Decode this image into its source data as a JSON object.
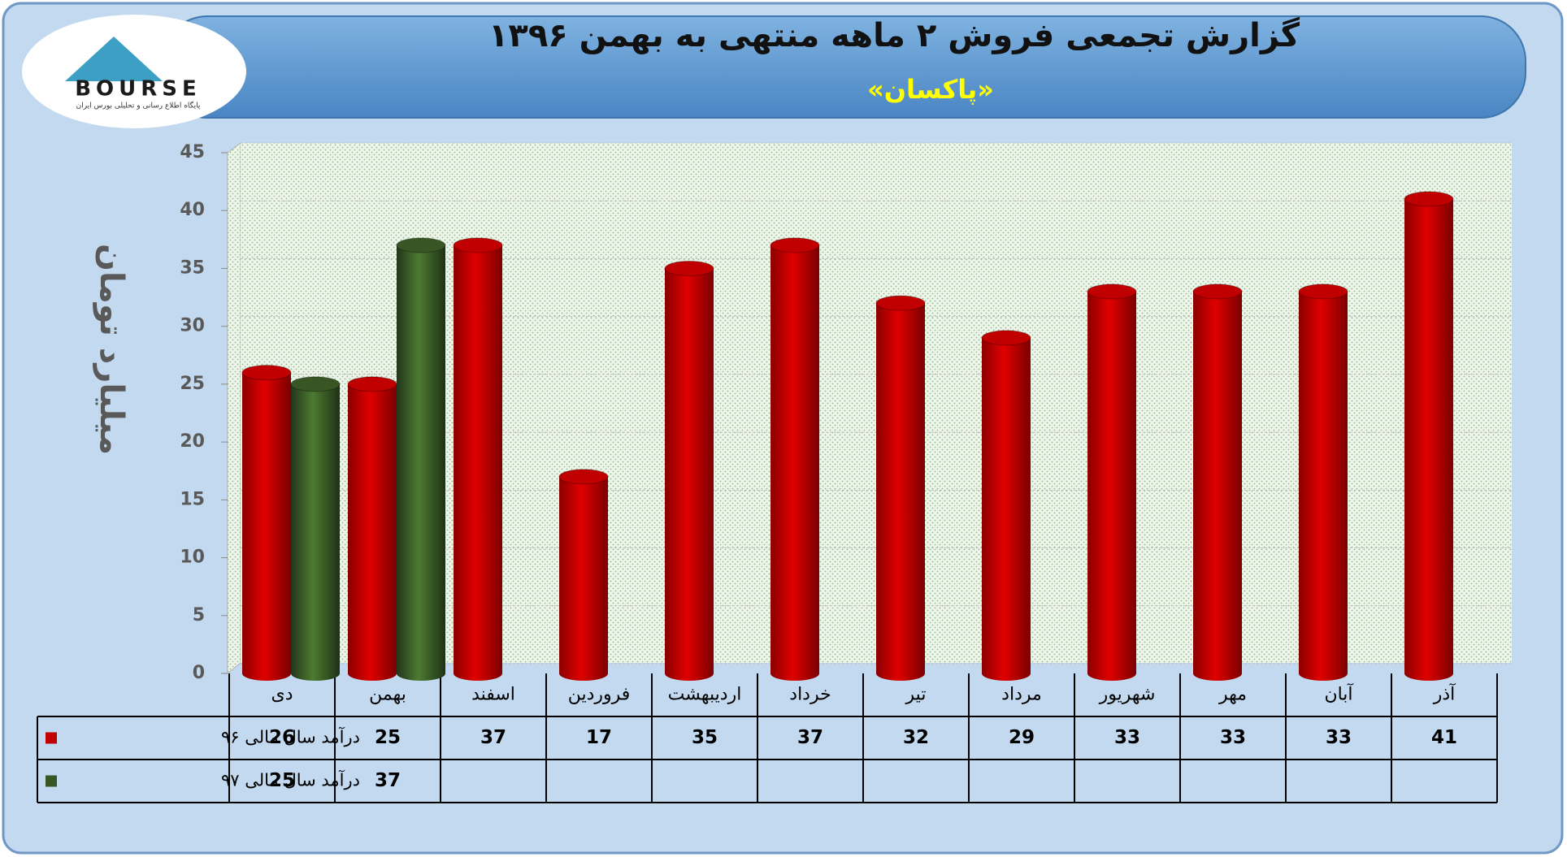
{
  "chart_data": {
    "type": "bar",
    "title": "گزارش تجمعی فروش ۲ ماهه منتهی به بهمن ۱۳۹۶",
    "subtitle": "«پاکسان»",
    "logo_text": "BOURSE",
    "logo_tagline": "پایگاه اطلاع رسانی و تحلیلی بورس ایران",
    "y_label": "میلیارد تومان",
    "categories": [
      "دی",
      "بهمن",
      "اسفند",
      "فروردین",
      "اردیبهشت",
      "خرداد",
      "تیر",
      "مرداد",
      "شهریور",
      "مهر",
      "آبان",
      "آذر"
    ],
    "series": [
      {
        "name": "درآمد سال مالی ۹۶",
        "color": "#c00000",
        "values": [
          26,
          25,
          37,
          17,
          35,
          37,
          32,
          29,
          33,
          33,
          33,
          41
        ]
      },
      {
        "name": "درآمد سال مالی ۹۷",
        "color": "#375623",
        "values": [
          25,
          37,
          null,
          null,
          null,
          null,
          null,
          null,
          null,
          null,
          null,
          null
        ]
      }
    ],
    "ylim": [
      0,
      45
    ],
    "yticks": [
      0,
      5,
      10,
      15,
      20,
      25,
      30,
      35,
      40,
      45
    ],
    "grid": true
  }
}
